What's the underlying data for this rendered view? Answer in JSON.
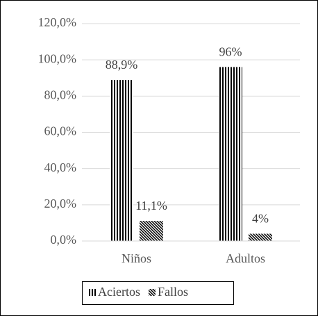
{
  "chart_data": {
    "type": "bar",
    "categories": [
      "Niños",
      "Adultos"
    ],
    "series": [
      {
        "name": "Aciertos",
        "color": "#000000",
        "pattern": "vertical",
        "values": [
          88.9,
          96
        ],
        "value_labels": [
          "88,9%",
          "96%"
        ]
      },
      {
        "name": "Fallos",
        "color": "#000000",
        "pattern": "diagonal",
        "values": [
          11.1,
          4
        ],
        "value_labels": [
          "11,1%",
          "4%"
        ]
      }
    ],
    "ylim": [
      0,
      120
    ],
    "yticks": [
      {
        "value": 0,
        "label": "0,0%"
      },
      {
        "value": 20,
        "label": "20,0%"
      },
      {
        "value": 40,
        "label": "40,0%"
      },
      {
        "value": 60,
        "label": "60,0%"
      },
      {
        "value": 80,
        "label": "80,0%"
      },
      {
        "value": 100,
        "label": "100,0%"
      },
      {
        "value": 120,
        "label": "120,0%"
      }
    ],
    "grid": true,
    "legend": "bottom"
  }
}
